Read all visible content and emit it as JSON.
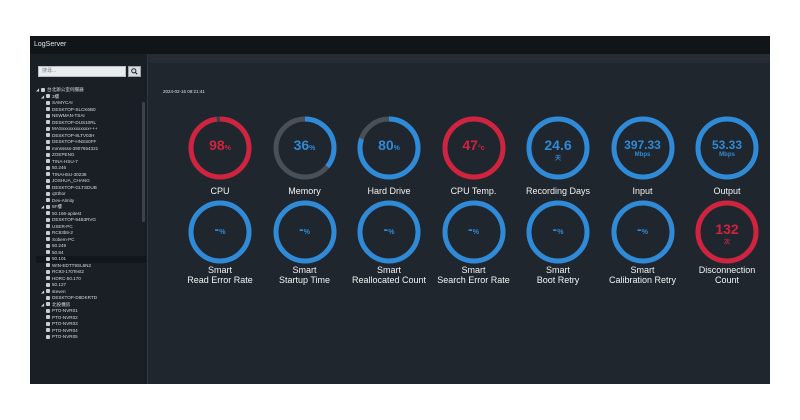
{
  "app": {
    "title": "LogServer"
  },
  "sidebar": {
    "search_placeholder": "搜尋...",
    "search_icon": "search-icon",
    "tree": [
      {
        "label": "台北辦公室伺服器",
        "level": 0,
        "arrow": "◢",
        "group": true
      },
      {
        "label": "3樓",
        "level": 1,
        "arrow": "◢",
        "group": true
      },
      {
        "label": "SAMYCAI",
        "level": 2
      },
      {
        "label": "DESKTOP-SLCK6B0",
        "level": 2
      },
      {
        "label": "NEWMAN-TSAI",
        "level": 2
      },
      {
        "label": "DESKTOP-DUS10RL",
        "level": 2
      },
      {
        "label": "MASxxxxxxxxxxxx+++",
        "level": 2
      },
      {
        "label": "DESKTOP-8LTV03H",
        "level": 2
      },
      {
        "label": "DESKTOP-HNSS0FF",
        "level": 2
      },
      {
        "label": "mmsssss-3907654321",
        "level": 2
      },
      {
        "label": "ZOEPENG",
        "level": 2
      },
      {
        "label": "TINA-HSU-7",
        "level": 2
      },
      {
        "label": "50.246",
        "level": 2
      },
      {
        "label": "TINAHSU-30238",
        "level": 2
      },
      {
        "label": "JOSHUA_CHANG",
        "level": 2
      },
      {
        "label": "DESKTOP-GLTSDUB",
        "level": 2
      },
      {
        "label": "qSthor",
        "level": 2
      },
      {
        "label": "Dev-Almity",
        "level": 2
      },
      {
        "label": "5F樓",
        "level": 1,
        "arrow": "◢",
        "group": true
      },
      {
        "label": "50.166-apitest",
        "level": 2
      },
      {
        "label": "DESKTOP-94B3RVG",
        "level": 2
      },
      {
        "label": "USER-PC",
        "level": 2
      },
      {
        "label": "RC93b9-2",
        "level": 2
      },
      {
        "label": "Sobem-PC",
        "level": 2
      },
      {
        "label": "50.249",
        "level": 2
      },
      {
        "label": "50.84",
        "level": 2
      },
      {
        "label": "50.101",
        "level": 2,
        "selected": true
      },
      {
        "label": "WIN-EDTT9SL6N2",
        "level": 2
      },
      {
        "label": "RC93-170Test2",
        "level": 2
      },
      {
        "label": "HDRC-50.170",
        "level": 2
      },
      {
        "label": "50.127",
        "level": 2
      },
      {
        "label": "steven",
        "level": 1,
        "arrow": "◢",
        "group": true
      },
      {
        "label": "DESKTOP-D8DKRTD",
        "level": 2
      },
      {
        "label": "北投機房",
        "level": 1,
        "arrow": "◢",
        "group": true
      },
      {
        "label": "PTO-NVR01",
        "level": 2
      },
      {
        "label": "PTO-NVR02",
        "level": 2
      },
      {
        "label": "PTO-NVR03",
        "level": 2
      },
      {
        "label": "PTO-NVR04",
        "level": 2
      },
      {
        "label": "PTO-NVR05",
        "level": 2
      }
    ]
  },
  "main": {
    "timestamp": "2024-02-16 08:21:41",
    "gauges": [
      {
        "id": "cpu",
        "value": "98",
        "unit": "%",
        "label_lines": [
          "CPU"
        ],
        "level": 0.98,
        "color": "#d0233f",
        "track": "#3a4149"
      },
      {
        "id": "memory",
        "value": "36",
        "unit": "%",
        "label_lines": [
          "Memory"
        ],
        "level": 0.36,
        "color": "#2f8ad8",
        "track": "#4a5058"
      },
      {
        "id": "hard-drive",
        "value": "80",
        "unit": "%",
        "label_lines": [
          "Hard Drive"
        ],
        "level": 0.8,
        "color": "#2f8ad8",
        "track": "#4a5058"
      },
      {
        "id": "cpu-temp",
        "value": "47",
        "unit": "°c",
        "label_lines": [
          "CPU Temp."
        ],
        "level": 1.0,
        "color": "#d0233f",
        "track": "#3a4149"
      },
      {
        "id": "recording-days",
        "value": "24.6",
        "unit": "天",
        "label_lines": [
          "Recording Days"
        ],
        "level": 1.0,
        "color": "#2f8ad8",
        "track": "#3a4149"
      },
      {
        "id": "input",
        "value": "397.33",
        "unit": "Mbps",
        "label_lines": [
          "Input"
        ],
        "level": 1.0,
        "color": "#2f8ad8",
        "track": "#3a4149"
      },
      {
        "id": "output",
        "value": "53.33",
        "unit": "Mbps",
        "label_lines": [
          "Output"
        ],
        "level": 1.0,
        "color": "#2f8ad8",
        "track": "#3a4149"
      },
      {
        "id": "read-error-rate",
        "value": "-",
        "unit": "%",
        "label_lines": [
          "Smart",
          "Read Error Rate"
        ],
        "level": 1.0,
        "color": "#2f8ad8",
        "track": "#3a4149"
      },
      {
        "id": "startup-time",
        "value": "-",
        "unit": "%",
        "label_lines": [
          "Smart",
          "Startup Time"
        ],
        "level": 1.0,
        "color": "#2f8ad8",
        "track": "#3a4149"
      },
      {
        "id": "reallocated-count",
        "value": "-",
        "unit": "%",
        "label_lines": [
          "Smart",
          "Reallocated Count"
        ],
        "level": 1.0,
        "color": "#2f8ad8",
        "track": "#3a4149"
      },
      {
        "id": "search-error-rate",
        "value": "-",
        "unit": "%",
        "label_lines": [
          "Smart",
          "Search Error Rate"
        ],
        "level": 1.0,
        "color": "#2f8ad8",
        "track": "#3a4149"
      },
      {
        "id": "boot-retry",
        "value": "-",
        "unit": "%",
        "label_lines": [
          "Smart",
          "Boot Retry"
        ],
        "level": 1.0,
        "color": "#2f8ad8",
        "track": "#3a4149"
      },
      {
        "id": "calibration-retry",
        "value": "-",
        "unit": "%",
        "label_lines": [
          "Smart",
          "Calibration Retry"
        ],
        "level": 1.0,
        "color": "#2f8ad8",
        "track": "#3a4149"
      },
      {
        "id": "disconnection-count",
        "value": "132",
        "unit": "次",
        "label_lines": [
          "Disconnection",
          "Count"
        ],
        "level": 1.0,
        "color": "#d0233f",
        "track": "#3a4149"
      }
    ]
  }
}
